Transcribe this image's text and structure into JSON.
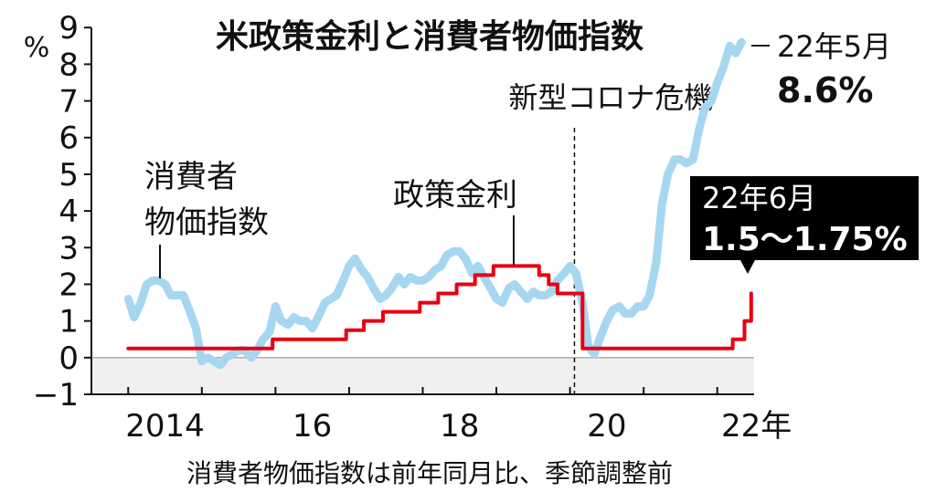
{
  "chart_data": {
    "type": "line",
    "title": "米政策金利と消費者物価指数",
    "ylabel": "%",
    "note": "消費者物価指数は前年同月比、季節調整前",
    "xlim": [
      2013.5,
      2022.5
    ],
    "ylim": [
      -1,
      9
    ],
    "yticks": [
      {
        "value": -1,
        "label": "−1"
      },
      0,
      1,
      2,
      3,
      4,
      5,
      6,
      7,
      8,
      9
    ],
    "xticks": [
      {
        "value": 2014.5,
        "label": "2014"
      },
      {
        "value": 2016.5,
        "label": "16"
      },
      {
        "value": 2018.5,
        "label": "18"
      },
      {
        "value": 2020.5,
        "label": "20"
      },
      {
        "value": 2022.5,
        "label": "22年"
      }
    ],
    "xtick_marks": [
      2014,
      2015,
      2016,
      2017,
      2018,
      2019,
      2020,
      2021,
      2022
    ],
    "negative_shade": "#f0f0f0",
    "series": [
      {
        "label_lines": [
          "消費者",
          "物価指数"
        ],
        "color": "#a6d7f0",
        "x": [
          2014.0,
          2014.08,
          2014.17,
          2014.25,
          2014.33,
          2014.42,
          2014.5,
          2014.58,
          2014.67,
          2014.75,
          2014.83,
          2014.92,
          2015.0,
          2015.08,
          2015.17,
          2015.25,
          2015.33,
          2015.42,
          2015.5,
          2015.58,
          2015.67,
          2015.75,
          2015.83,
          2015.92,
          2016.0,
          2016.08,
          2016.17,
          2016.25,
          2016.33,
          2016.42,
          2016.5,
          2016.58,
          2016.67,
          2016.75,
          2016.83,
          2016.92,
          2017.0,
          2017.08,
          2017.17,
          2017.25,
          2017.33,
          2017.42,
          2017.5,
          2017.58,
          2017.67,
          2017.75,
          2017.83,
          2017.92,
          2018.0,
          2018.08,
          2018.17,
          2018.25,
          2018.33,
          2018.42,
          2018.5,
          2018.58,
          2018.67,
          2018.75,
          2018.83,
          2018.92,
          2019.0,
          2019.08,
          2019.17,
          2019.25,
          2019.33,
          2019.42,
          2019.5,
          2019.58,
          2019.67,
          2019.75,
          2019.83,
          2019.92,
          2020.0,
          2020.08,
          2020.17,
          2020.25,
          2020.33,
          2020.42,
          2020.5,
          2020.58,
          2020.67,
          2020.75,
          2020.83,
          2020.92,
          2021.0,
          2021.08,
          2021.17,
          2021.25,
          2021.33,
          2021.42,
          2021.5,
          2021.58,
          2021.67,
          2021.75,
          2021.83,
          2021.92,
          2022.0,
          2022.08,
          2022.17,
          2022.25,
          2022.33
        ],
        "values": [
          1.6,
          1.1,
          1.5,
          2.0,
          2.1,
          2.1,
          2.0,
          1.7,
          1.7,
          1.7,
          1.3,
          0.8,
          -0.1,
          0.0,
          -0.1,
          -0.2,
          0.0,
          0.1,
          0.2,
          0.2,
          0.0,
          0.2,
          0.5,
          0.7,
          1.4,
          1.0,
          0.9,
          1.1,
          1.0,
          1.0,
          0.8,
          1.1,
          1.5,
          1.6,
          1.7,
          2.1,
          2.5,
          2.7,
          2.4,
          2.2,
          1.9,
          1.6,
          1.7,
          1.9,
          2.2,
          2.0,
          2.2,
          2.1,
          2.1,
          2.2,
          2.4,
          2.5,
          2.8,
          2.9,
          2.9,
          2.7,
          2.3,
          2.5,
          2.2,
          1.9,
          1.6,
          1.5,
          1.9,
          2.0,
          1.8,
          1.6,
          1.8,
          1.7,
          1.7,
          1.8,
          2.1,
          2.3,
          2.5,
          2.3,
          1.5,
          0.3,
          0.1,
          0.6,
          1.0,
          1.3,
          1.4,
          1.2,
          1.2,
          1.4,
          1.4,
          1.7,
          2.6,
          4.2,
          5.0,
          5.4,
          5.4,
          5.3,
          5.4,
          6.2,
          6.8,
          7.0,
          7.5,
          7.9,
          8.5,
          8.3,
          8.6
        ]
      },
      {
        "name": "政策金利",
        "color": "#e60012",
        "x": [
          2014,
          2015.96,
          2015.96,
          2016.96,
          2016.96,
          2017.2,
          2017.2,
          2017.46,
          2017.46,
          2017.96,
          2017.96,
          2018.21,
          2018.21,
          2018.46,
          2018.46,
          2018.71,
          2018.71,
          2018.96,
          2018.96,
          2019.58,
          2019.58,
          2019.71,
          2019.71,
          2019.83,
          2019.83,
          2020.17,
          2020.17,
          2022.21,
          2022.21,
          2022.37,
          2022.37,
          2022.46,
          2022.46
        ],
        "values": [
          0.25,
          0.25,
          0.5,
          0.5,
          0.75,
          0.75,
          1.0,
          1.0,
          1.25,
          1.25,
          1.5,
          1.5,
          1.75,
          1.75,
          2.0,
          2.0,
          2.25,
          2.25,
          2.5,
          2.5,
          2.25,
          2.25,
          2.0,
          2.0,
          1.75,
          1.75,
          0.25,
          0.25,
          0.5,
          0.5,
          1.0,
          1.0,
          1.75
        ]
      }
    ],
    "vline": {
      "x": 2020.06,
      "label": "新型コロナ危機"
    },
    "callouts": [
      {
        "lines": [
          "22年5月",
          "8.6%"
        ]
      },
      {
        "lines": [
          "22年6月",
          "1.5～1.75%"
        ]
      }
    ]
  }
}
